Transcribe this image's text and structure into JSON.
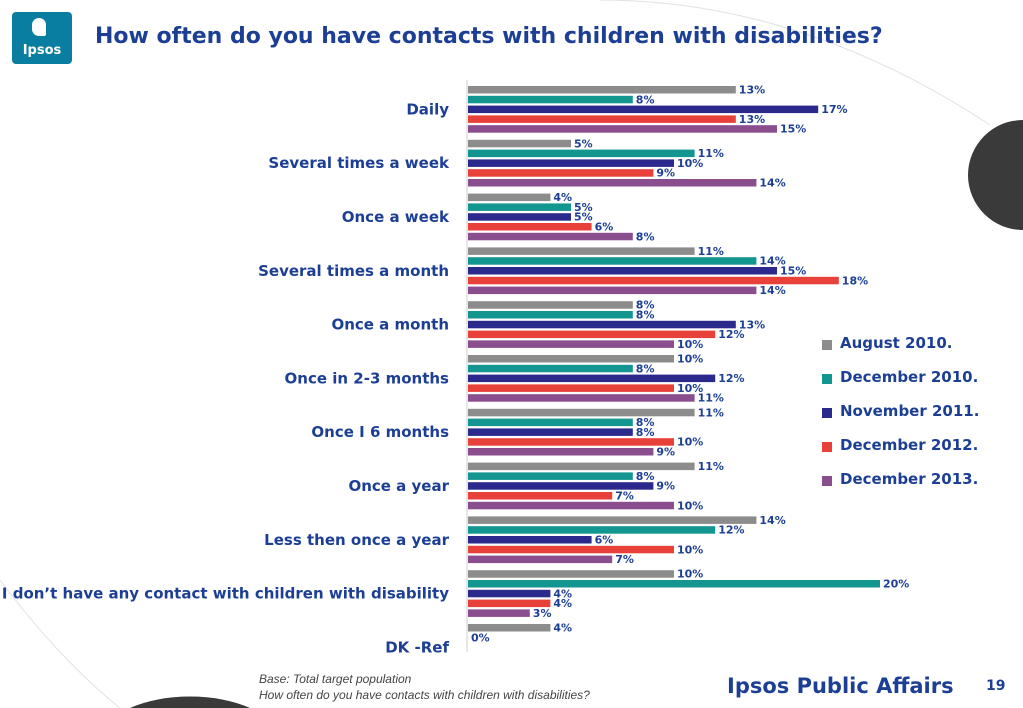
{
  "header": {
    "logo_text": "Ipsos",
    "title": "How often do you have contacts with children with disabilities?"
  },
  "chart_data": {
    "type": "bar",
    "orientation": "horizontal",
    "title": "How often do you have contacts with children with disabilities?",
    "categories": [
      "Daily",
      "Several times a week",
      "Once a week",
      "Several times a month",
      "Once a month",
      "Once in 2-3 months",
      "Once I 6 months",
      "Once a year",
      "Less then once a year",
      "I don’t have any contact with children with disability",
      "DK -Ref"
    ],
    "series": [
      {
        "name": "August 2010.",
        "color": "#8c8c8c",
        "values": [
          13,
          5,
          4,
          11,
          8,
          10,
          11,
          11,
          14,
          10,
          4
        ]
      },
      {
        "name": "December 2010.",
        "color": "#13968f",
        "values": [
          8,
          11,
          5,
          14,
          8,
          8,
          8,
          8,
          12,
          20,
          0
        ]
      },
      {
        "name": "November 2011.",
        "color": "#2b2a8c",
        "values": [
          17,
          10,
          5,
          15,
          13,
          12,
          8,
          9,
          6,
          4,
          null
        ]
      },
      {
        "name": "December 2012.",
        "color": "#e8413a",
        "values": [
          13,
          9,
          6,
          18,
          12,
          10,
          10,
          7,
          10,
          4,
          null
        ]
      },
      {
        "name": "December 2013.",
        "color": "#8a4d8d",
        "values": [
          15,
          14,
          8,
          14,
          10,
          11,
          9,
          10,
          7,
          3,
          null
        ]
      }
    ],
    "value_suffix": "%",
    "legend_position": "right",
    "grid": false
  },
  "legend": {
    "items": [
      {
        "label": "August 2010.",
        "color": "#8c8c8c"
      },
      {
        "label": "December 2010.",
        "color": "#13968f"
      },
      {
        "label": "November 2011.",
        "color": "#2b2a8c"
      },
      {
        "label": "December 2012.",
        "color": "#e8413a"
      },
      {
        "label": "December 2013.",
        "color": "#8a4d8d"
      }
    ]
  },
  "footer": {
    "base": "Base: Total target population",
    "question": "How often do you have contacts with children with disabilities?",
    "brand": "Ipsos Public Affairs",
    "page_number": "19"
  }
}
